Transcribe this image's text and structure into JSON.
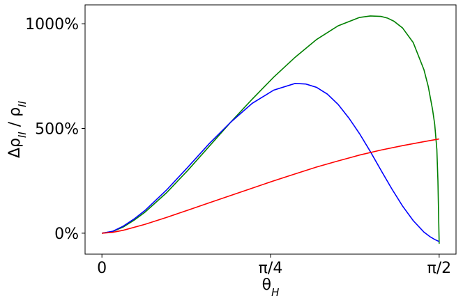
{
  "chart_data": {
    "type": "line",
    "title": "",
    "xlabel": "θ_H",
    "ylabel": "Δρ_II / ρ_II",
    "xlim": [
      -0.0785,
      1.6493
    ],
    "ylim": [
      -100,
      1090
    ],
    "x_ticks": [
      {
        "value": 0,
        "label": "0"
      },
      {
        "value": 0.7854,
        "label": "π/4"
      },
      {
        "value": 1.5708,
        "label": "π/2"
      }
    ],
    "y_ticks": [
      {
        "value": 0,
        "label": "0%"
      },
      {
        "value": 500,
        "label": "500%"
      },
      {
        "value": 1000,
        "label": "1000%"
      }
    ],
    "grid": false,
    "series": [
      {
        "color": "#008000",
        "x": [
          0,
          0.05,
          0.1,
          0.15,
          0.2,
          0.3,
          0.4,
          0.5,
          0.6,
          0.7,
          0.8,
          0.9,
          1.0,
          1.1,
          1.2,
          1.25,
          1.3,
          1.33,
          1.36,
          1.4,
          1.45,
          1.5,
          1.52,
          1.54,
          1.55,
          1.56,
          1.565,
          1.5708
        ],
        "y": [
          0,
          8,
          30,
          62,
          100,
          192,
          300,
          415,
          530,
          640,
          745,
          840,
          925,
          990,
          1030,
          1037,
          1035,
          1027,
          1012,
          980,
          910,
          780,
          700,
          590,
          520,
          400,
          250,
          -50
        ]
      },
      {
        "color": "#0000ff",
        "x": [
          0,
          0.05,
          0.1,
          0.15,
          0.2,
          0.3,
          0.4,
          0.5,
          0.6,
          0.7,
          0.8,
          0.9,
          0.95,
          1.0,
          1.05,
          1.1,
          1.15,
          1.2,
          1.25,
          1.3,
          1.35,
          1.4,
          1.45,
          1.5,
          1.53,
          1.55,
          1.5708
        ],
        "y": [
          0,
          9,
          34,
          68,
          108,
          205,
          315,
          428,
          530,
          620,
          683,
          715,
          712,
          696,
          664,
          615,
          550,
          475,
          390,
          300,
          212,
          130,
          60,
          5,
          -18,
          -30,
          -40
        ]
      },
      {
        "color": "#ff0000",
        "x": [
          0,
          0.05,
          0.1,
          0.2,
          0.3,
          0.4,
          0.5,
          0.6,
          0.7,
          0.8,
          0.9,
          1.0,
          1.1,
          1.2,
          1.3,
          1.4,
          1.5,
          1.5708
        ],
        "y": [
          0,
          4,
          14,
          42,
          75,
          110,
          145,
          180,
          215,
          250,
          283,
          316,
          345,
          373,
          397,
          418,
          437,
          450
        ]
      }
    ]
  }
}
